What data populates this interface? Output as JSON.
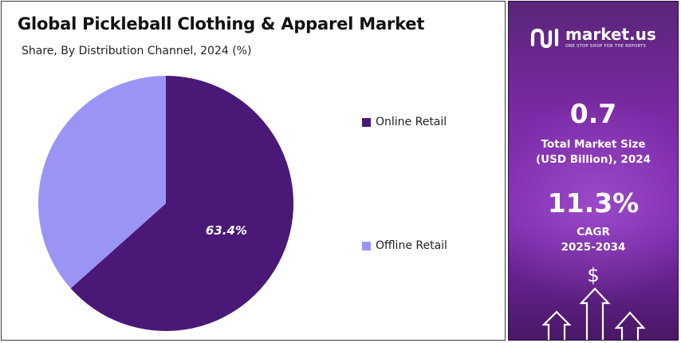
{
  "header": {
    "title": "Global Pickleball Clothing & Apparel Market",
    "subtitle": "Share, By Distribution Channel, 2024 (%)"
  },
  "chart_data": {
    "type": "pie",
    "slices": [
      {
        "label": "Online Retail",
        "value": 63.4,
        "color": "#4a1877",
        "data_label": "63.4%"
      },
      {
        "label": "Offline Retail",
        "value": 36.6,
        "color": "#9a95f5",
        "data_label": ""
      }
    ],
    "legend_placement": "right"
  },
  "sidebar": {
    "brand_name": "market.us",
    "brand_tagline": "ONE STOP SHOP FOR THE REPORTS",
    "market_size_value": "0.7",
    "market_size_label_line1": "Total Market Size",
    "market_size_label_line2": "(USD Billion), 2024",
    "cagr_value": "11.3%",
    "cagr_label_line1": "CAGR",
    "cagr_label_line2": "2025-2034",
    "currency_symbol": "$"
  },
  "colors": {
    "panel_purple": "#7b2aa5",
    "online_retail": "#4a1877",
    "offline_retail": "#9a95f5"
  }
}
